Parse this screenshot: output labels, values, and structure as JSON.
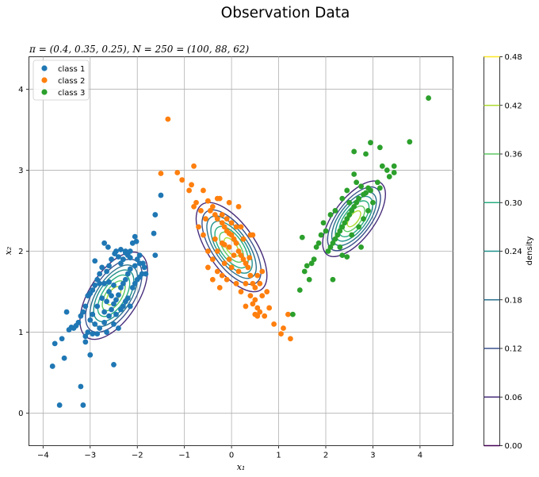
{
  "chart_data": {
    "type": "scatter",
    "title": "Observation Data",
    "subtitle": "π = (0.4, 0.35, 0.25), N = 250 = (100, 88, 62)",
    "xlabel": "x₁",
    "ylabel": "x₂",
    "xlim": [
      -4.3,
      4.7
    ],
    "ylim": [
      -0.4,
      4.4
    ],
    "x_ticks": [
      -4,
      -3,
      -2,
      -1,
      0,
      1,
      2,
      3,
      4
    ],
    "y_ticks": [
      0,
      1,
      2,
      3,
      4
    ],
    "grid": true,
    "legend_position": "top-left",
    "colorbar": {
      "label": "density",
      "min": 0.0,
      "max": 0.48,
      "ticks": [
        "0.00",
        "0.06",
        "0.12",
        "0.18",
        "0.24",
        "0.30",
        "0.36",
        "0.42",
        "0.48"
      ],
      "level_colors": [
        "#440154",
        "#472d7b",
        "#3b528b",
        "#2c728e",
        "#21918c",
        "#28ae80",
        "#5ec962",
        "#addc30",
        "#fde725"
      ]
    },
    "series": [
      {
        "name": "class 1",
        "color": "#1f77b4",
        "mean": [
          -2.5,
          1.45
        ],
        "contour_semi_axes": [
          [
            1.05,
            0.3
          ],
          [
            0.88,
            0.25
          ],
          [
            0.74,
            0.21
          ],
          [
            0.62,
            0.18
          ],
          [
            0.5,
            0.14
          ],
          [
            0.36,
            0.1
          ],
          [
            0.22,
            0.065
          ]
        ],
        "contour_angle_deg": 57,
        "points": [
          [
            -1.5,
            2.69
          ],
          [
            -1.62,
            2.45
          ],
          [
            -1.65,
            2.22
          ],
          [
            -1.95,
            1.95
          ],
          [
            -2.02,
            2.12
          ],
          [
            -2.05,
            2.18
          ],
          [
            -2.1,
            2.1
          ],
          [
            -2.15,
            2.0
          ],
          [
            -2.2,
            1.95
          ],
          [
            -2.25,
            1.98
          ],
          [
            -2.3,
            1.9
          ],
          [
            -2.35,
            1.85
          ],
          [
            -2.4,
            1.93
          ],
          [
            -2.45,
            2.0
          ],
          [
            -2.48,
            1.97
          ],
          [
            -2.55,
            1.9
          ],
          [
            -2.6,
            1.82
          ],
          [
            -2.65,
            1.75
          ],
          [
            -2.7,
            2.1
          ],
          [
            -2.62,
            2.05
          ],
          [
            -2.75,
            1.8
          ],
          [
            -2.8,
            1.72
          ],
          [
            -2.85,
            1.65
          ],
          [
            -2.9,
            1.58
          ],
          [
            -2.95,
            1.52
          ],
          [
            -3.0,
            1.48
          ],
          [
            -3.05,
            1.45
          ],
          [
            -3.1,
            1.32
          ],
          [
            -3.15,
            1.25
          ],
          [
            -3.2,
            1.2
          ],
          [
            -3.25,
            1.12
          ],
          [
            -3.3,
            1.08
          ],
          [
            -3.35,
            1.05
          ],
          [
            -3.4,
            1.06
          ],
          [
            -3.45,
            1.03
          ],
          [
            -3.5,
            1.25
          ],
          [
            -3.55,
            0.68
          ],
          [
            -3.6,
            0.92
          ],
          [
            -3.75,
            0.86
          ],
          [
            -3.8,
            0.58
          ],
          [
            -3.65,
            0.1
          ],
          [
            -3.2,
            0.33
          ],
          [
            -3.15,
            0.1
          ],
          [
            -3.0,
            0.72
          ],
          [
            -2.5,
            0.6
          ],
          [
            -2.85,
            0.98
          ],
          [
            -2.95,
            0.98
          ],
          [
            -3.05,
            1.0
          ],
          [
            -3.1,
            0.95
          ],
          [
            -2.9,
            1.1
          ],
          [
            -2.8,
            1.05
          ],
          [
            -2.7,
            1.12
          ],
          [
            -2.6,
            1.2
          ],
          [
            -2.55,
            1.28
          ],
          [
            -2.5,
            1.35
          ],
          [
            -2.45,
            1.4
          ],
          [
            -2.4,
            1.46
          ],
          [
            -2.35,
            1.55
          ],
          [
            -2.3,
            1.6
          ],
          [
            -2.25,
            1.65
          ],
          [
            -2.2,
            1.72
          ],
          [
            -2.15,
            1.78
          ],
          [
            -2.1,
            1.55
          ],
          [
            -2.05,
            1.6
          ],
          [
            -2.0,
            1.65
          ],
          [
            -1.95,
            1.68
          ],
          [
            -1.9,
            1.72
          ],
          [
            -1.85,
            1.8
          ],
          [
            -1.88,
            1.85
          ],
          [
            -1.82,
            1.72
          ],
          [
            -1.62,
            1.95
          ],
          [
            -2.55,
            1.45
          ],
          [
            -2.65,
            1.38
          ],
          [
            -2.75,
            1.42
          ],
          [
            -2.85,
            1.32
          ],
          [
            -2.95,
            1.22
          ],
          [
            -3.0,
            1.15
          ],
          [
            -2.7,
            1.6
          ],
          [
            -2.6,
            1.62
          ],
          [
            -2.5,
            1.58
          ],
          [
            -2.45,
            1.22
          ],
          [
            -2.35,
            1.28
          ],
          [
            -2.3,
            1.32
          ],
          [
            -2.25,
            1.38
          ],
          [
            -2.2,
            1.42
          ],
          [
            -2.15,
            1.32
          ],
          [
            -2.4,
            1.05
          ],
          [
            -2.5,
            1.1
          ],
          [
            -2.9,
            1.88
          ],
          [
            -2.8,
            1.6
          ],
          [
            -2.05,
            1.82
          ],
          [
            -2.0,
            1.9
          ],
          [
            -1.95,
            1.85
          ],
          [
            -2.35,
            2.02
          ],
          [
            -2.25,
            2.0
          ],
          [
            -2.15,
            1.92
          ],
          [
            -2.6,
            1.5
          ],
          [
            -2.7,
            1.25
          ],
          [
            -3.1,
            0.88
          ],
          [
            -2.65,
            1.0
          ]
        ]
      },
      {
        "name": "class 2",
        "color": "#ff7f0e",
        "mean": [
          0.0,
          2.05
        ],
        "contour_semi_axes": [
          [
            1.1,
            0.29
          ],
          [
            0.92,
            0.24
          ],
          [
            0.77,
            0.2
          ],
          [
            0.64,
            0.17
          ],
          [
            0.51,
            0.14
          ],
          [
            0.37,
            0.1
          ],
          [
            0.23,
            0.062
          ]
        ],
        "contour_angle_deg": -55,
        "points": [
          [
            -1.35,
            3.63
          ],
          [
            -1.5,
            2.96
          ],
          [
            -1.15,
            2.97
          ],
          [
            -1.05,
            2.88
          ],
          [
            -0.8,
            3.05
          ],
          [
            -0.85,
            2.82
          ],
          [
            -0.9,
            2.75
          ],
          [
            -0.6,
            2.75
          ],
          [
            -0.75,
            2.6
          ],
          [
            -0.8,
            2.55
          ],
          [
            -0.65,
            2.5
          ],
          [
            -0.5,
            2.62
          ],
          [
            -0.4,
            2.55
          ],
          [
            -0.3,
            2.65
          ],
          [
            -0.35,
            2.45
          ],
          [
            -0.3,
            2.4
          ],
          [
            -0.2,
            2.35
          ],
          [
            -0.15,
            2.3
          ],
          [
            -0.1,
            2.25
          ],
          [
            -0.05,
            2.22
          ],
          [
            0.0,
            2.2
          ],
          [
            0.05,
            2.15
          ],
          [
            0.1,
            2.1
          ],
          [
            -0.05,
            2.05
          ],
          [
            0.15,
            2.0
          ],
          [
            0.2,
            1.95
          ],
          [
            0.25,
            1.9
          ],
          [
            0.3,
            1.85
          ],
          [
            0.0,
            1.8
          ],
          [
            0.35,
            1.8
          ],
          [
            0.4,
            1.7
          ],
          [
            0.45,
            1.6
          ],
          [
            0.5,
            1.55
          ],
          [
            0.5,
            1.4
          ],
          [
            0.55,
            1.3
          ],
          [
            0.6,
            1.25
          ],
          [
            0.7,
            1.2
          ],
          [
            0.75,
            1.5
          ],
          [
            0.8,
            1.3
          ],
          [
            0.9,
            1.1
          ],
          [
            1.05,
            0.98
          ],
          [
            1.1,
            1.05
          ],
          [
            1.25,
            0.92
          ],
          [
            1.2,
            1.22
          ],
          [
            0.55,
            1.2
          ],
          [
            0.5,
            1.22
          ],
          [
            0.4,
            1.45
          ],
          [
            0.2,
            1.5
          ],
          [
            0.1,
            1.6
          ],
          [
            -0.1,
            1.65
          ],
          [
            -0.2,
            1.7
          ],
          [
            -0.3,
            1.75
          ],
          [
            -0.5,
            1.8
          ],
          [
            -0.4,
            1.9
          ],
          [
            -0.3,
            2.0
          ],
          [
            -0.2,
            2.1
          ],
          [
            -0.6,
            2.2
          ],
          [
            -0.7,
            2.3
          ],
          [
            -0.55,
            2.4
          ],
          [
            -0.45,
            2.5
          ],
          [
            -0.25,
            2.65
          ],
          [
            -0.1,
            2.4
          ],
          [
            0.1,
            2.3
          ],
          [
            0.2,
            2.3
          ],
          [
            0.4,
            2.2
          ],
          [
            0.45,
            2.2
          ],
          [
            0.25,
            2.15
          ],
          [
            0.05,
            1.95
          ],
          [
            -0.05,
            1.9
          ],
          [
            0.15,
            1.75
          ],
          [
            0.3,
            1.6
          ],
          [
            -0.25,
            1.55
          ],
          [
            -0.4,
            1.65
          ],
          [
            0.6,
            1.6
          ],
          [
            0.55,
            1.7
          ],
          [
            0.65,
            1.75
          ],
          [
            -0.15,
            1.85
          ],
          [
            -0.35,
            2.15
          ],
          [
            0.15,
            2.55
          ],
          [
            -0.05,
            2.6
          ],
          [
            -0.2,
            2.45
          ],
          [
            0.3,
            1.32
          ],
          [
            0.45,
            1.35
          ],
          [
            0.65,
            1.45
          ],
          [
            -0.5,
            2.0
          ],
          [
            0.0,
            2.35
          ],
          [
            0.38,
            1.92
          ],
          [
            -0.15,
            2.08
          ]
        ]
      },
      {
        "name": "class 3",
        "color": "#2ca02c",
        "mean": [
          2.6,
          2.4
        ],
        "contour_semi_axes": [
          [
            0.95,
            0.25
          ],
          [
            0.8,
            0.21
          ],
          [
            0.67,
            0.18
          ],
          [
            0.56,
            0.15
          ],
          [
            0.45,
            0.12
          ],
          [
            0.32,
            0.085
          ],
          [
            0.2,
            0.053
          ]
        ],
        "contour_angle_deg": 53,
        "points": [
          [
            4.18,
            3.89
          ],
          [
            3.78,
            3.35
          ],
          [
            2.95,
            3.34
          ],
          [
            2.85,
            3.2
          ],
          [
            3.45,
            3.05
          ],
          [
            3.15,
            3.28
          ],
          [
            2.6,
            3.23
          ],
          [
            3.2,
            3.05
          ],
          [
            3.3,
            3.0
          ],
          [
            3.45,
            2.97
          ],
          [
            3.35,
            2.92
          ],
          [
            3.1,
            2.85
          ],
          [
            3.15,
            2.78
          ],
          [
            2.95,
            2.75
          ],
          [
            2.85,
            2.72
          ],
          [
            2.8,
            2.7
          ],
          [
            2.9,
            2.78
          ],
          [
            2.7,
            2.65
          ],
          [
            2.65,
            2.6
          ],
          [
            2.6,
            2.55
          ],
          [
            2.55,
            2.5
          ],
          [
            2.5,
            2.45
          ],
          [
            2.45,
            2.4
          ],
          [
            2.4,
            2.35
          ],
          [
            2.35,
            2.3
          ],
          [
            2.3,
            2.25
          ],
          [
            2.25,
            2.2
          ],
          [
            2.2,
            2.15
          ],
          [
            2.15,
            2.1
          ],
          [
            2.1,
            2.05
          ],
          [
            2.05,
            2.0
          ],
          [
            2.0,
            2.25
          ],
          [
            1.95,
            2.35
          ],
          [
            1.9,
            2.2
          ],
          [
            1.85,
            2.1
          ],
          [
            1.8,
            2.05
          ],
          [
            1.75,
            1.9
          ],
          [
            1.7,
            1.85
          ],
          [
            1.6,
            1.82
          ],
          [
            1.55,
            1.75
          ],
          [
            1.5,
            2.17
          ],
          [
            1.45,
            1.52
          ],
          [
            1.65,
            1.65
          ],
          [
            1.3,
            1.22
          ],
          [
            2.15,
            1.65
          ],
          [
            2.35,
            1.95
          ],
          [
            2.45,
            1.93
          ],
          [
            2.75,
            2.05
          ],
          [
            2.3,
            2.05
          ],
          [
            2.55,
            2.2
          ],
          [
            2.7,
            2.3
          ],
          [
            2.8,
            2.4
          ],
          [
            2.9,
            2.5
          ],
          [
            3.0,
            2.6
          ],
          [
            2.65,
            2.85
          ],
          [
            2.75,
            2.8
          ],
          [
            2.6,
            2.95
          ],
          [
            2.45,
            2.75
          ],
          [
            2.35,
            2.65
          ],
          [
            2.5,
            2.6
          ],
          [
            2.2,
            2.5
          ],
          [
            2.1,
            2.45
          ]
        ]
      }
    ]
  }
}
